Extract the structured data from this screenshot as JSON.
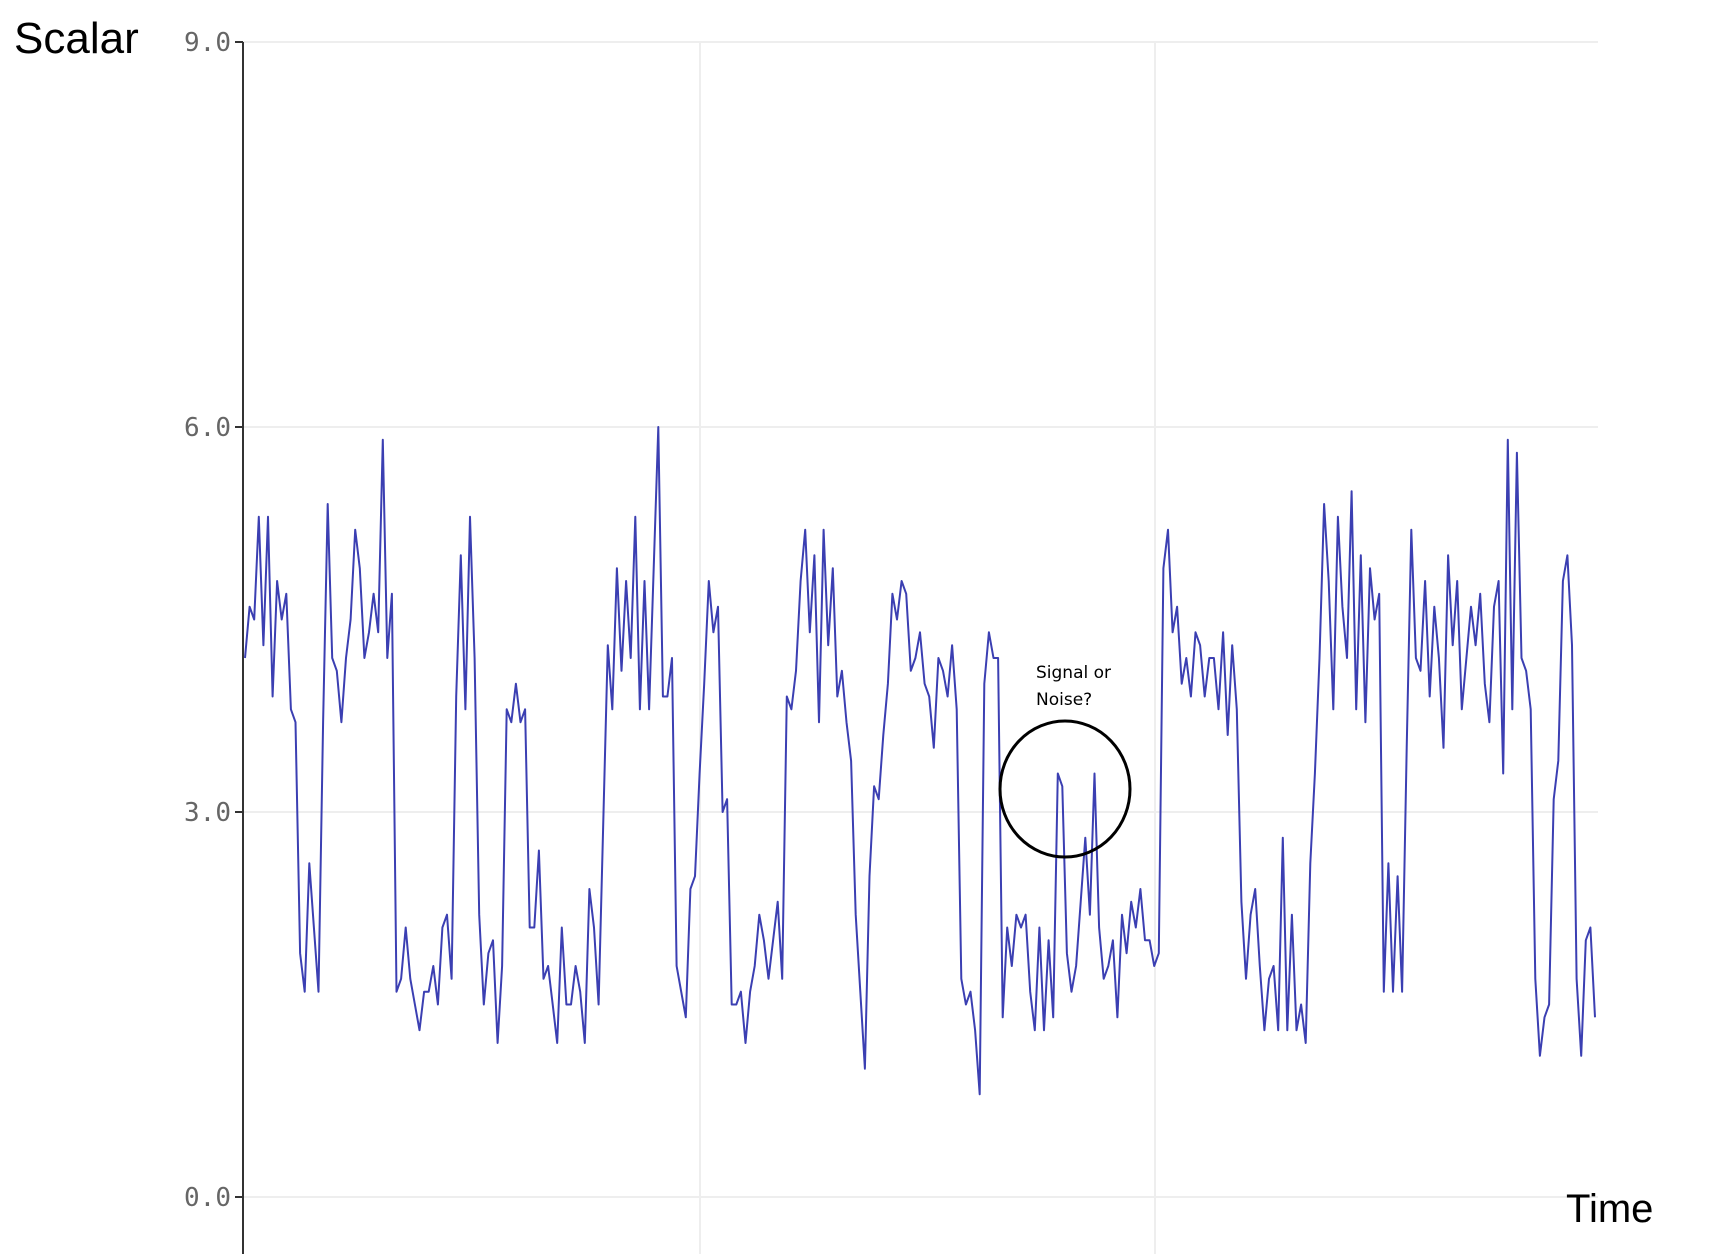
{
  "chart_data": {
    "type": "line",
    "ylabel": "Scalar",
    "xlabel": "Time",
    "ylim": [
      0,
      9
    ],
    "yticks": [
      {
        "value": 0,
        "label": "0.0"
      },
      {
        "value": 3,
        "label": "3.0"
      },
      {
        "value": 6,
        "label": "6.0"
      },
      {
        "value": 9,
        "label": "9.0"
      }
    ],
    "grid": true,
    "series": [
      {
        "color": "#3b3fb2",
        "values": [
          4.2,
          4.6,
          4.5,
          5.3,
          4.3,
          5.3,
          3.9,
          4.8,
          4.5,
          4.7,
          3.8,
          3.7,
          1.9,
          1.6,
          2.6,
          2.1,
          1.6,
          3.7,
          5.4,
          4.2,
          4.1,
          3.7,
          4.2,
          4.5,
          5.2,
          4.9,
          4.2,
          4.4,
          4.7,
          4.4,
          5.9,
          4.2,
          4.7,
          1.6,
          1.7,
          2.1,
          1.7,
          1.5,
          1.3,
          1.6,
          1.6,
          1.8,
          1.5,
          2.1,
          2.2,
          1.7,
          3.9,
          5.0,
          3.8,
          5.3,
          4.2,
          2.2,
          1.5,
          1.9,
          2.0,
          1.2,
          1.8,
          3.8,
          3.7,
          4.0,
          3.7,
          3.8,
          2.1,
          2.1,
          2.7,
          1.7,
          1.8,
          1.5,
          1.2,
          2.1,
          1.5,
          1.5,
          1.8,
          1.6,
          1.2,
          2.4,
          2.1,
          1.5,
          2.9,
          4.3,
          3.8,
          4.9,
          4.1,
          4.8,
          4.2,
          5.3,
          3.8,
          4.8,
          3.8,
          4.9,
          6.0,
          3.9,
          3.9,
          4.2,
          1.8,
          1.6,
          1.4,
          2.4,
          2.5,
          3.3,
          4.0,
          4.8,
          4.4,
          4.6,
          3.0,
          3.1,
          1.5,
          1.5,
          1.6,
          1.2,
          1.6,
          1.8,
          2.2,
          2.0,
          1.7,
          2.0,
          2.3,
          1.7,
          3.9,
          3.8,
          4.1,
          4.8,
          5.2,
          4.4,
          5.0,
          3.7,
          5.2,
          4.3,
          4.9,
          3.9,
          4.1,
          3.7,
          3.4,
          2.2,
          1.6,
          1.0,
          2.5,
          3.2,
          3.1,
          3.6,
          4.0,
          4.7,
          4.5,
          4.8,
          4.7,
          4.1,
          4.2,
          4.4,
          4.0,
          3.9,
          3.5,
          4.2,
          4.1,
          3.9,
          4.3,
          3.8,
          1.7,
          1.5,
          1.6,
          1.3,
          0.8,
          4.0,
          4.4,
          4.2,
          4.2,
          1.4,
          2.1,
          1.8,
          2.2,
          2.1,
          2.2,
          1.6,
          1.3,
          2.1,
          1.3,
          2.0,
          1.4,
          3.3,
          3.2,
          1.9,
          1.6,
          1.8,
          2.3,
          2.8,
          2.2,
          3.3,
          2.1,
          1.7,
          1.8,
          2.0,
          1.4,
          2.2,
          1.9,
          2.3,
          2.1,
          2.4,
          2.0,
          2.0,
          1.8,
          1.9,
          4.9,
          5.2,
          4.4,
          4.6,
          4.0,
          4.2,
          3.9,
          4.4,
          4.3,
          3.9,
          4.2,
          4.2,
          3.8,
          4.4,
          3.6,
          4.3,
          3.8,
          2.3,
          1.7,
          2.2,
          2.4,
          1.8,
          1.3,
          1.7,
          1.8,
          1.3,
          2.8,
          1.3,
          2.2,
          1.3,
          1.5,
          1.2,
          2.6,
          3.3,
          4.2,
          5.4,
          4.8,
          3.8,
          5.3,
          4.6,
          4.2,
          5.5,
          3.8,
          5.0,
          3.7,
          4.9,
          4.5,
          4.7,
          1.6,
          2.6,
          1.6,
          2.5,
          1.6,
          3.5,
          5.2,
          4.2,
          4.1,
          4.8,
          3.9,
          4.6,
          4.2,
          3.5,
          5.0,
          4.3,
          4.8,
          3.8,
          4.2,
          4.6,
          4.3,
          4.7,
          4.0,
          3.7,
          4.6,
          4.8,
          3.3,
          5.9,
          3.8,
          5.8,
          4.2,
          4.1,
          3.8,
          1.7,
          1.1,
          1.4,
          1.5,
          3.1,
          3.4,
          4.8,
          5.0,
          4.3,
          1.7,
          1.1,
          2.0,
          2.1,
          1.4
        ]
      }
    ],
    "annotations": [
      {
        "lines": [
          "Signal or",
          "Noise?"
        ],
        "marker": "circle"
      }
    ]
  }
}
